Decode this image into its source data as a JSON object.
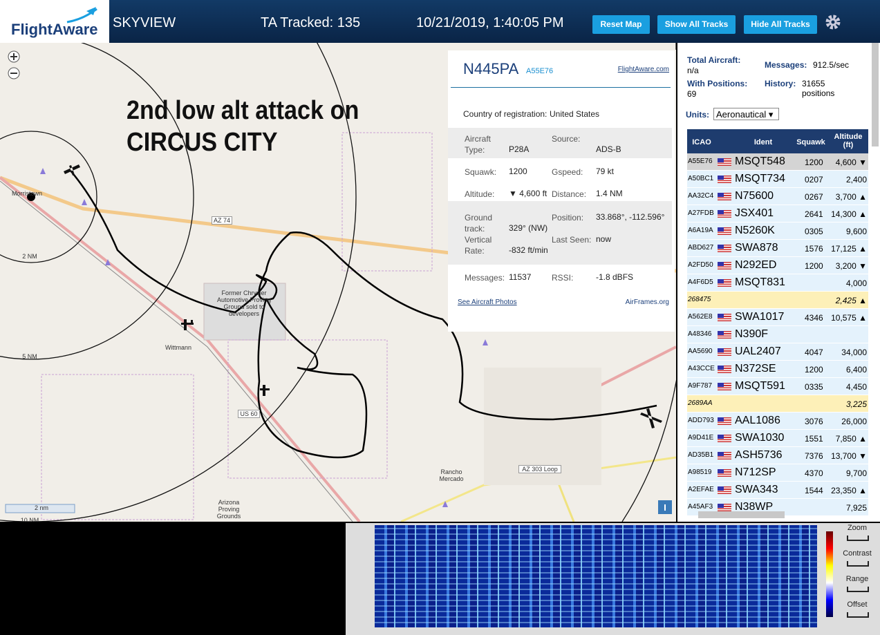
{
  "header": {
    "logo": "FlightAware",
    "app": "SKYVIEW",
    "tracked": "TA Tracked: 135",
    "datetime": "10/21/2019, 1:40:05 PM",
    "buttons": [
      "Reset Map",
      "Show All Tracks",
      "Hide All Tracks"
    ]
  },
  "map": {
    "annotation": [
      "2nd low alt attack on",
      "CIRCUS CITY"
    ],
    "labels": [
      "Morristown",
      "2 NM",
      "5 NM",
      "10 NM",
      "AZ 74",
      "US 60",
      "Wittmann",
      "Former Chrysler Automotive Proving Ground sold to developers",
      "Rancho Mercado",
      "AZ 303 Loop",
      "Arizona Proving Grounds",
      "2 nm"
    ]
  },
  "popup": {
    "ident": "N445PA",
    "hex": "A55E76",
    "link": "FlightAware.com",
    "country_label": "Country of registration:",
    "country": "United States",
    "groups": [
      [
        {
          "label": "Aircraft Type:",
          "value": "P28A"
        },
        {
          "label": "Source:",
          "value": "ADS-B"
        }
      ],
      [
        {
          "label": "Squawk:",
          "value": "1200"
        },
        {
          "label": "Gspeed:",
          "value": "79 kt"
        },
        {
          "label": "Altitude:",
          "value": "▼ 4,600 ft"
        },
        {
          "label": "Distance:",
          "value": "1.4 NM"
        }
      ],
      [
        {
          "label": "Ground track:",
          "value": "329° (NW)"
        },
        {
          "label": "Position:",
          "value": "33.868°, -112.596°"
        },
        {
          "label": "Vertical Rate:",
          "value": "-832 ft/min"
        },
        {
          "label": "Last Seen:",
          "value": "now"
        }
      ],
      [
        {
          "label": "Messages:",
          "value": "11537"
        },
        {
          "label": "RSSI:",
          "value": "-1.8 dBFS"
        }
      ]
    ],
    "photos": "See Aircraft Photos",
    "airframes": "AirFrames.org"
  },
  "stats": {
    "total_label": "Total Aircraft:",
    "total": "n/a",
    "positions_label": "With Positions:",
    "positions": "69",
    "messages_label": "Messages:",
    "messages": "912.5/sec",
    "history_label": "History:",
    "history": "31655 positions",
    "units_label": "Units:",
    "units": "Aeronautical"
  },
  "table": {
    "headers": [
      "ICAO",
      "Ident",
      "Squawk",
      "Altitude (ft)"
    ],
    "rows": [
      {
        "icao": "A55E76",
        "ident": "MSQT548",
        "squawk": "1200",
        "altitude": "4,600 ▼",
        "selected": true
      },
      {
        "icao": "A50BC1",
        "ident": "MSQT734",
        "squawk": "0207",
        "altitude": "2,400"
      },
      {
        "icao": "AA32C4",
        "ident": "N75600",
        "squawk": "0267",
        "altitude": "3,700 ▲"
      },
      {
        "icao": "A27FDB",
        "ident": "JSX401",
        "squawk": "2641",
        "altitude": "14,300 ▲"
      },
      {
        "icao": "A6A19A",
        "ident": "N5260K",
        "squawk": "0305",
        "altitude": "9,600"
      },
      {
        "icao": "ABD627",
        "ident": "SWA878",
        "squawk": "1576",
        "altitude": "17,125 ▲"
      },
      {
        "icao": "A2FD50",
        "ident": "N292ED",
        "squawk": "1200",
        "altitude": "3,200 ▼"
      },
      {
        "icao": "A4F6D5",
        "ident": "MSQT831",
        "altitude": "4,000"
      },
      {
        "icao": "268475",
        "altitude": "2,425 ▲",
        "highlight": true
      },
      {
        "icao": "A562E8",
        "ident": "SWA1017",
        "squawk": "4346",
        "altitude": "10,575 ▲"
      },
      {
        "icao": "A48346",
        "ident": "N390F"
      },
      {
        "icao": "AA5690",
        "ident": "UAL2407",
        "squawk": "4047",
        "altitude": "34,000"
      },
      {
        "icao": "A43CCE",
        "ident": "N372SE",
        "squawk": "1200",
        "altitude": "6,400"
      },
      {
        "icao": "A9F787",
        "ident": "MSQT591",
        "squawk": "0335",
        "altitude": "4,450"
      },
      {
        "icao": "2689AA",
        "altitude": "3,225",
        "highlight": true
      },
      {
        "icao": "ADD793",
        "ident": "AAL1086",
        "squawk": "3076",
        "altitude": "26,000"
      },
      {
        "icao": "A9D41E",
        "ident": "SWA1030",
        "squawk": "1551",
        "altitude": "7,850 ▲"
      },
      {
        "icao": "AD35B1",
        "ident": "ASH5736",
        "squawk": "7376",
        "altitude": "13,700 ▼"
      },
      {
        "icao": "A98519",
        "ident": "N712SP",
        "squawk": "4370",
        "altitude": "9,700"
      },
      {
        "icao": "A2EFAE",
        "ident": "SWA343",
        "squawk": "1544",
        "altitude": "23,350 ▲"
      },
      {
        "icao": "A45AF3",
        "ident": "N38WP",
        "altitude": "7,925"
      }
    ]
  },
  "spectrum": {
    "controls": [
      "Zoom",
      "Contrast",
      "Range",
      "Offset"
    ]
  }
}
